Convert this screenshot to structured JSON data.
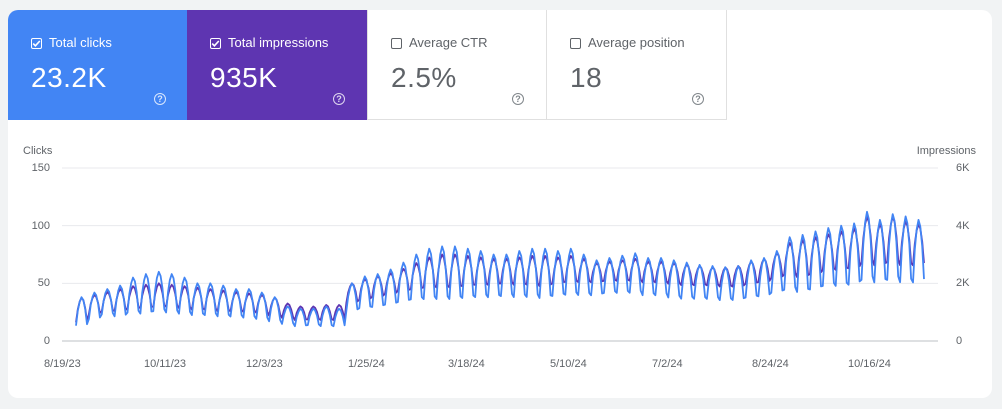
{
  "metrics": [
    {
      "label": "Total clicks",
      "value": "23.2K",
      "checked": true,
      "color": "#4285f4"
    },
    {
      "label": "Total impressions",
      "value": "935K",
      "checked": true,
      "color": "#5e35b1"
    },
    {
      "label": "Average CTR",
      "value": "2.5%",
      "checked": false
    },
    {
      "label": "Average position",
      "value": "18",
      "checked": false
    }
  ],
  "help_icon": "?",
  "chart_data": {
    "type": "line",
    "left_axis_label": "Clicks",
    "right_axis_label": "Impressions",
    "left_ticks": [
      "150",
      "100",
      "50",
      "0"
    ],
    "right_ticks": [
      "6K",
      "4K",
      "2K",
      "0"
    ],
    "left_ylim": [
      0,
      150
    ],
    "right_ylim": [
      0,
      6000
    ],
    "x_tick_labels": [
      "8/19/23",
      "10/11/23",
      "12/3/23",
      "1/25/24",
      "3/18/24",
      "5/10/24",
      "7/2/24",
      "8/24/24",
      "10/16/24"
    ],
    "date_range": [
      "8/19/23",
      "11/22/24"
    ],
    "grid": true,
    "series": [
      {
        "name": "Clicks",
        "axis": "left",
        "color": "#4285f4",
        "weekly_min": [
          12,
          18,
          22,
          20,
          23,
          22,
          24,
          23,
          22,
          21,
          21,
          20,
          20,
          19,
          18,
          16,
          14,
          12,
          13,
          12,
          12,
          25,
          27,
          28,
          30,
          32,
          34,
          34,
          34,
          34,
          35,
          36,
          36,
          37,
          36,
          36,
          35,
          37,
          38,
          38,
          38,
          40,
          40,
          40,
          38,
          38,
          36,
          35,
          35,
          35,
          34,
          34,
          36,
          37,
          40,
          42,
          40,
          42,
          45,
          45,
          46,
          50,
          48,
          50,
          48,
          48
        ],
        "weekly_max": [
          38,
          42,
          45,
          48,
          55,
          58,
          60,
          58,
          55,
          50,
          50,
          48,
          45,
          45,
          42,
          38,
          30,
          28,
          28,
          30,
          28,
          50,
          56,
          58,
          62,
          68,
          75,
          80,
          82,
          82,
          80,
          78,
          75,
          75,
          78,
          80,
          80,
          78,
          80,
          75,
          70,
          72,
          74,
          76,
          72,
          72,
          70,
          68,
          66,
          65,
          64,
          65,
          70,
          72,
          78,
          90,
          92,
          95,
          98,
          100,
          102,
          112,
          105,
          110,
          108,
          105
        ]
      },
      {
        "name": "Impressions",
        "axis": "right",
        "color": "#5e35b1",
        "weekly_min": [
          600,
          900,
          1000,
          1000,
          1100,
          1100,
          1150,
          1150,
          1100,
          1050,
          1050,
          1000,
          1000,
          980,
          950,
          850,
          780,
          700,
          720,
          700,
          700,
          1300,
          1400,
          1500,
          1600,
          1700,
          1750,
          1800,
          1800,
          1800,
          1850,
          1900,
          1900,
          1950,
          1900,
          1900,
          1850,
          1950,
          2000,
          2000,
          2000,
          2050,
          2050,
          2050,
          2000,
          2000,
          1950,
          1900,
          1900,
          1900,
          1850,
          1850,
          1950,
          2000,
          2150,
          2250,
          2150,
          2250,
          2400,
          2400,
          2450,
          2650,
          2550,
          2650,
          2550,
          2550
        ],
        "weekly_max": [
          1500,
          1600,
          1700,
          1800,
          1900,
          1950,
          2000,
          1950,
          1900,
          1850,
          1800,
          1750,
          1700,
          1650,
          1600,
          1500,
          1300,
          1200,
          1200,
          1250,
          1250,
          2000,
          2150,
          2250,
          2350,
          2500,
          2700,
          2900,
          3000,
          3000,
          2950,
          2900,
          2850,
          2850,
          2900,
          2950,
          2950,
          2900,
          2950,
          2850,
          2700,
          2750,
          2800,
          2850,
          2750,
          2750,
          2700,
          2650,
          2600,
          2550,
          2550,
          2600,
          2750,
          2850,
          3050,
          3400,
          3500,
          3600,
          3700,
          3800,
          3900,
          4300,
          4050,
          4300,
          4150,
          4050
        ]
      }
    ]
  }
}
